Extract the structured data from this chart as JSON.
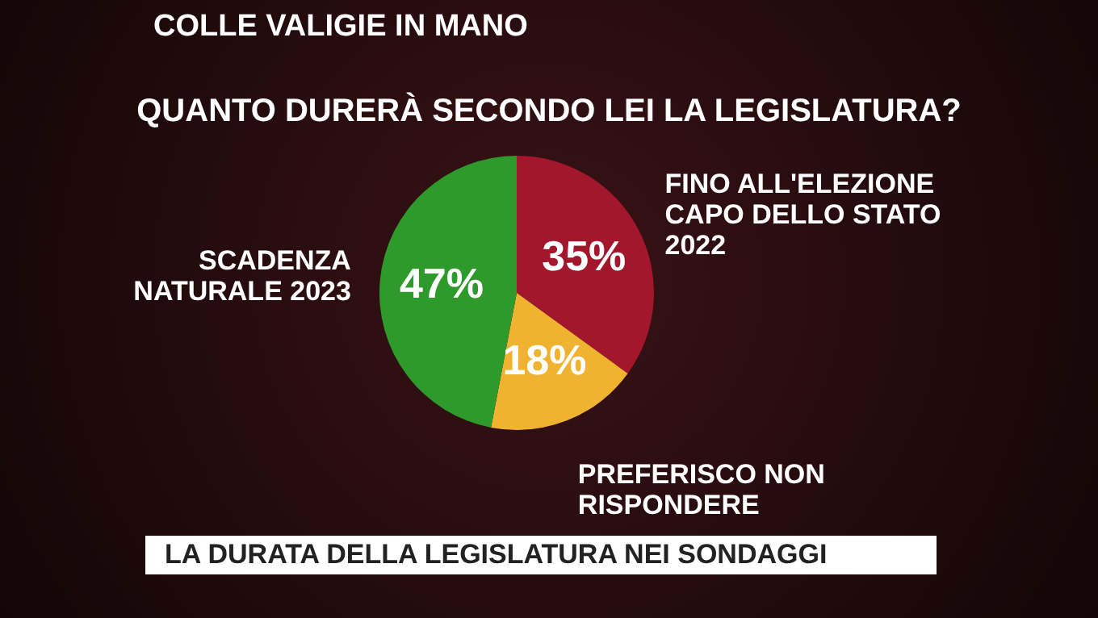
{
  "chart_data": {
    "type": "pie",
    "title": "QUANTO DURERÀ SECONDO LEI LA LEGISLATURA?",
    "subtitle": "COLLE VALIGIE IN MANO",
    "categories": [
      "FINO ALL'ELEZIONE CAPO DELLO STATO 2022",
      "PREFERISCO NON RISPONDERE",
      "SCADENZA NATURALE 2023"
    ],
    "values": [
      35,
      18,
      47
    ],
    "colors": [
      "#a3172c",
      "#f0b330",
      "#2f9a2c"
    ],
    "value_labels": [
      "35%",
      "18%",
      "47%"
    ],
    "legend": false,
    "annotations": [
      "LA DURATA DELLA LEGISLATURA NEI SONDAGGI"
    ]
  }
}
